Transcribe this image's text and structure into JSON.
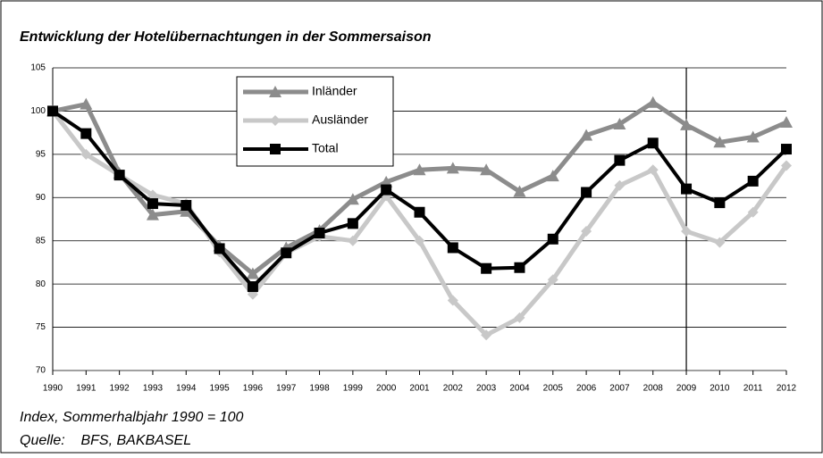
{
  "chart_data": {
    "type": "line",
    "title": "Entwicklung der Hotelübernachtungen in der Sommersaison",
    "notes": [
      "Index, Sommerhalbjahr 1990 = 100",
      "Quelle:    BFS, BAKBASEL"
    ],
    "categories": [
      "1990",
      "1991",
      "1992",
      "1993",
      "1994",
      "1995",
      "1996",
      "1997",
      "1998",
      "1999",
      "2000",
      "2001",
      "2002",
      "2003",
      "2004",
      "2005",
      "2006",
      "2007",
      "2008",
      "2009",
      "2010",
      "2011",
      "2012"
    ],
    "series": [
      {
        "name": "Inländer",
        "color": "#8c8c8c",
        "marker": "triangle",
        "values": [
          100,
          100.8,
          92.8,
          88,
          88.4,
          84.4,
          81.2,
          84.2,
          86.2,
          89.8,
          91.8,
          93.2,
          93.4,
          93.2,
          90.7,
          92.5,
          97.2,
          98.5,
          101,
          98.4,
          96.4,
          97,
          98.7
        ]
      },
      {
        "name": "Ausländer",
        "color": "#c8c8c8",
        "marker": "diamond",
        "values": [
          100,
          95,
          92.6,
          90.3,
          89.3,
          83.7,
          78.8,
          83.6,
          85.5,
          85,
          90.2,
          85,
          78.1,
          74.1,
          76.1,
          80.5,
          86.1,
          91.4,
          93.2,
          86.1,
          84.8,
          88.3,
          93.7
        ]
      },
      {
        "name": "Total",
        "color": "#000000",
        "marker": "square",
        "values": [
          100,
          97.4,
          92.6,
          89.3,
          89.1,
          84.1,
          79.7,
          83.6,
          85.9,
          87,
          90.9,
          88.3,
          84.2,
          81.8,
          81.9,
          85.2,
          90.6,
          94.3,
          96.3,
          91,
          89.4,
          91.9,
          95.6
        ]
      }
    ],
    "ylim": [
      70,
      105
    ],
    "yticks": [
      70,
      75,
      80,
      85,
      90,
      95,
      100,
      105
    ],
    "grid": true,
    "vertical_line_at": "2009",
    "legend": "top-left"
  }
}
